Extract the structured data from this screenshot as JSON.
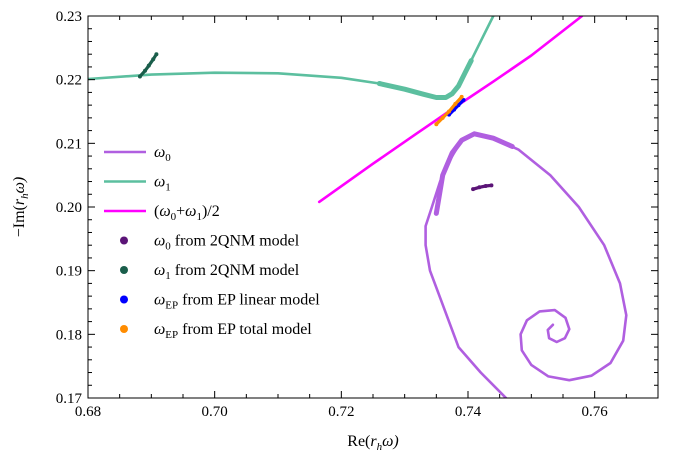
{
  "chart_data": {
    "type": "line",
    "title": "",
    "xlabel": "Re(r_hω)",
    "ylabel": "−Im(r_hω)",
    "xlabel_parts": {
      "pre": "Re(",
      "var": "r",
      "sub": "h",
      "post": "ω)"
    },
    "ylabel_parts": {
      "pre": "−Im(",
      "var": "r",
      "sub": "h",
      "post": "ω)"
    },
    "xlim": [
      0.68,
      0.77
    ],
    "ylim": [
      0.17,
      0.23
    ],
    "x_ticks": [
      0.68,
      0.7,
      0.72,
      0.74,
      0.76
    ],
    "x_tick_labels": [
      "0.68",
      "0.70",
      "0.72",
      "0.74",
      "0.76"
    ],
    "y_ticks": [
      0.17,
      0.18,
      0.19,
      0.2,
      0.21,
      0.22,
      0.23
    ],
    "y_tick_labels": [
      "0.17",
      "0.18",
      "0.19",
      "0.20",
      "0.21",
      "0.22",
      "0.23"
    ],
    "grid": false,
    "legend_position": "left",
    "colors": {
      "omega0": "#b05fe0",
      "omega1": "#5cbf9f",
      "mean": "#ff00ff",
      "omega0_2qnm": "#5b1477",
      "omega1_2qnm": "#1a5e4b",
      "ep_linear": "#0000ff",
      "ep_total": "#ff8c00"
    },
    "series": [
      {
        "key": "omega0",
        "legend": {
          "sym": "ω",
          "sub": "0",
          "rest": ""
        },
        "style": "line",
        "points": [
          [
            0.746,
            0.17
          ],
          [
            0.742,
            0.174
          ],
          [
            0.7385,
            0.178
          ],
          [
            0.737,
            0.182
          ],
          [
            0.7355,
            0.186
          ],
          [
            0.734,
            0.19
          ],
          [
            0.7333,
            0.194
          ],
          [
            0.7333,
            0.197
          ],
          [
            0.7343,
            0.2
          ],
          [
            0.7356,
            0.204
          ],
          [
            0.7372,
            0.2075
          ],
          [
            0.739,
            0.2105
          ],
          [
            0.741,
            0.2115
          ],
          [
            0.744,
            0.2108
          ],
          [
            0.748,
            0.209
          ],
          [
            0.753,
            0.205
          ],
          [
            0.7575,
            0.2
          ],
          [
            0.7615,
            0.194
          ],
          [
            0.764,
            0.188
          ],
          [
            0.765,
            0.183
          ],
          [
            0.7645,
            0.179
          ],
          [
            0.7625,
            0.1755
          ],
          [
            0.7595,
            0.1735
          ],
          [
            0.756,
            0.1728
          ],
          [
            0.7527,
            0.1734
          ],
          [
            0.75,
            0.1752
          ],
          [
            0.7485,
            0.1775
          ],
          [
            0.7483,
            0.18
          ],
          [
            0.7493,
            0.1822
          ],
          [
            0.7513,
            0.1836
          ],
          [
            0.7537,
            0.1838
          ],
          [
            0.7554,
            0.1826
          ],
          [
            0.756,
            0.1808
          ],
          [
            0.7553,
            0.1794
          ],
          [
            0.754,
            0.1788
          ],
          [
            0.7528,
            0.1794
          ],
          [
            0.7526,
            0.1807
          ],
          [
            0.7534,
            0.1815
          ]
        ]
      },
      {
        "key": "omega1",
        "legend": {
          "sym": "ω",
          "sub": "1",
          "rest": ""
        },
        "style": "line",
        "points": [
          [
            0.68,
            0.2201
          ],
          [
            0.69,
            0.2208
          ],
          [
            0.7,
            0.2211
          ],
          [
            0.71,
            0.221
          ],
          [
            0.72,
            0.2203
          ],
          [
            0.726,
            0.2194
          ],
          [
            0.73,
            0.2185
          ],
          [
            0.733,
            0.2177
          ],
          [
            0.735,
            0.2172
          ],
          [
            0.7365,
            0.2172
          ],
          [
            0.7375,
            0.2178
          ],
          [
            0.7385,
            0.219
          ],
          [
            0.7395,
            0.221
          ],
          [
            0.741,
            0.224
          ],
          [
            0.7425,
            0.227
          ],
          [
            0.744,
            0.23
          ]
        ]
      },
      {
        "key": "mean",
        "legend": {
          "sym": "(ω",
          "sub": "0",
          "rest": "+ω₁)/2",
          "alt": true
        },
        "style": "line",
        "points": [
          [
            0.7165,
            0.2008
          ],
          [
            0.725,
            0.2068
          ],
          [
            0.732,
            0.2116
          ],
          [
            0.738,
            0.2157
          ],
          [
            0.744,
            0.2197
          ],
          [
            0.75,
            0.2238
          ],
          [
            0.758,
            0.23
          ]
        ]
      },
      {
        "key": "omega0_2qnm",
        "legend": {
          "sym": "ω",
          "sub": "0",
          "rest": " from 2QNM model"
        },
        "style": "dots",
        "points": [
          [
            0.7408,
            0.2028
          ],
          [
            0.7418,
            0.2031
          ],
          [
            0.7428,
            0.2033
          ],
          [
            0.7437,
            0.2034
          ]
        ]
      },
      {
        "key": "omega1_2qnm",
        "legend": {
          "sym": "ω",
          "sub": "1",
          "rest": " from 2QNM model"
        },
        "style": "dots",
        "points": [
          [
            0.6882,
            0.2205
          ],
          [
            0.689,
            0.2214
          ],
          [
            0.6896,
            0.2222
          ],
          [
            0.6903,
            0.2232
          ],
          [
            0.6908,
            0.224
          ]
        ]
      },
      {
        "key": "ep_linear",
        "legend": {
          "sym": "ω",
          "sub": "EP",
          "rest": " from EP linear model"
        },
        "style": "dots",
        "points": [
          [
            0.737,
            0.2145
          ],
          [
            0.7378,
            0.2153
          ],
          [
            0.7385,
            0.216
          ],
          [
            0.7393,
            0.2168
          ]
        ]
      },
      {
        "key": "ep_total",
        "legend": {
          "sym": "ω",
          "sub": "EP",
          "rest": " from EP total model"
        },
        "style": "dots",
        "points": [
          [
            0.735,
            0.213
          ],
          [
            0.736,
            0.214
          ],
          [
            0.737,
            0.215
          ],
          [
            0.738,
            0.2162
          ],
          [
            0.739,
            0.2173
          ]
        ]
      }
    ],
    "legend_entries": [
      {
        "key": "omega0",
        "pre": "",
        "sub": "0",
        "post": ""
      },
      {
        "key": "omega1",
        "pre": "",
        "sub": "1",
        "post": ""
      },
      {
        "key": "mean",
        "pre": "(",
        "sub": "0",
        "post": "+",
        "sub2": "1",
        "post2": ")/2"
      },
      {
        "key": "omega0_2qnm",
        "pre": "",
        "sub": "0",
        "post": " from 2QNM model"
      },
      {
        "key": "omega1_2qnm",
        "pre": "",
        "sub": "1",
        "post": " from 2QNM model"
      },
      {
        "key": "ep_linear",
        "pre": "",
        "sub": "EP",
        "post": " from EP linear model"
      },
      {
        "key": "ep_total",
        "pre": "",
        "sub": "EP",
        "post": " from EP total model"
      }
    ]
  }
}
